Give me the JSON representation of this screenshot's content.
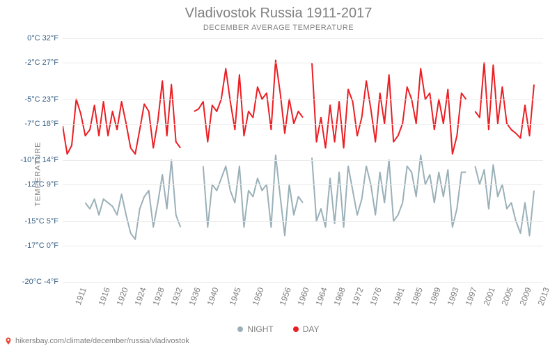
{
  "title": "Vladivostok Russia 1911-2017",
  "subtitle": "DECEMBER AVERAGE TEMPERATURE",
  "yaxis_label": "TEMPERATURE",
  "attribution": "hikersbay.com/climate/december/russia/vladivostok",
  "legend": {
    "night": {
      "label": "NIGHT",
      "color": "#9ab0b8"
    },
    "day": {
      "label": "DAY",
      "color": "#eb1e23"
    }
  },
  "chart": {
    "type": "line",
    "background_color": "#ffffff",
    "grid_color": "#eaeaea",
    "title_fontsize": 20,
    "title_color": "#808080",
    "subtitle_fontsize": 11,
    "axis_label_color": "#808080",
    "tick_color_y": "#335e84",
    "tick_color_x": "#808080",
    "tick_fontsize_x": 12,
    "tick_fontsize_y": 11,
    "line_width": 2,
    "marker_style": "circle",
    "marker_size": 3,
    "xtick_rotation": -70,
    "xlim": [
      1911,
      2017
    ],
    "ylim_c": [
      -20,
      0
    ],
    "xticks": [
      1911,
      1916,
      1920,
      1924,
      1928,
      1932,
      1936,
      1940,
      1945,
      1950,
      1956,
      1960,
      1964,
      1968,
      1972,
      1976,
      1981,
      1985,
      1989,
      1993,
      1997,
      2001,
      2005,
      2009,
      2013
    ],
    "yticks": [
      {
        "c": 0,
        "f": 32,
        "label_c": "0°C",
        "label_f": "32°F"
      },
      {
        "c": -2,
        "f": 27,
        "label_c": "-2°C",
        "label_f": "27°F"
      },
      {
        "c": -5,
        "f": 23,
        "label_c": "-5°C",
        "label_f": "23°F"
      },
      {
        "c": -7,
        "f": 18,
        "label_c": "-7°C",
        "label_f": "18°F"
      },
      {
        "c": -10,
        "f": 14,
        "label_c": "-10°C",
        "label_f": "14°F"
      },
      {
        "c": -12,
        "f": 9,
        "label_c": "-12°C",
        "label_f": "9°F"
      },
      {
        "c": -15,
        "f": 5,
        "label_c": "-15°C",
        "label_f": "5°F"
      },
      {
        "c": -17,
        "f": 0,
        "label_c": "-17°C",
        "label_f": "0°F"
      },
      {
        "c": -20,
        "f": -4,
        "label_c": "-20°C",
        "label_f": "-4°F"
      }
    ],
    "series": {
      "day": {
        "color": "#eb1e23",
        "segments": [
          {
            "years": [
              1911,
              1912,
              1913,
              1914,
              1915,
              1916,
              1917,
              1918,
              1919,
              1920,
              1921,
              1922,
              1923,
              1924,
              1925,
              1926,
              1927,
              1928,
              1929,
              1930,
              1931,
              1932,
              1933,
              1934,
              1935,
              1936,
              1937
            ],
            "values_c": [
              -7.2,
              -9.5,
              -8.8,
              -5.0,
              -6.2,
              -8.0,
              -7.5,
              -5.5,
              -8.0,
              -5.2,
              -8.0,
              -6.0,
              -7.5,
              -5.2,
              -7.0,
              -9.0,
              -9.5,
              -7.5,
              -5.4,
              -6.0,
              -9.0,
              -6.8,
              -3.5,
              -8.0,
              -3.8,
              -8.5,
              -9.0
            ]
          },
          {
            "years": [
              1940,
              1941,
              1942,
              1943,
              1944,
              1945,
              1946,
              1947,
              1948,
              1949,
              1950,
              1951,
              1952,
              1953,
              1954,
              1955,
              1956,
              1957,
              1958,
              1959,
              1960,
              1961,
              1962,
              1963,
              1964
            ],
            "values_c": [
              -6.0,
              -5.8,
              -5.2,
              -8.5,
              -5.5,
              -6.0,
              -5.0,
              -2.5,
              -5.2,
              -7.5,
              -3.0,
              -8.0,
              -6.0,
              -6.5,
              -4.0,
              -5.0,
              -4.5,
              -7.5,
              -1.8,
              -4.5,
              -7.8,
              -5.0,
              -7.0,
              -6.0,
              -6.5
            ]
          },
          {
            "years": [
              1966,
              1967,
              1968,
              1969,
              1970,
              1971,
              1972,
              1973,
              1974,
              1975,
              1976,
              1977,
              1978,
              1979,
              1980,
              1981,
              1982,
              1983,
              1984,
              1985,
              1986,
              1987,
              1988,
              1989,
              1990,
              1991,
              1992,
              1993,
              1994,
              1995,
              1996,
              1997,
              1998,
              1999,
              2000
            ],
            "values_c": [
              -2.0,
              -8.5,
              -6.5,
              -9.0,
              -5.5,
              -8.5,
              -5.2,
              -9.0,
              -4.2,
              -5.2,
              -8.0,
              -6.5,
              -3.5,
              -5.8,
              -8.5,
              -4.5,
              -7.0,
              -3.0,
              -8.5,
              -8.0,
              -7.0,
              -4.0,
              -5.0,
              -7.0,
              -2.5,
              -5.0,
              -4.5,
              -7.5,
              -5.0,
              -7.0,
              -4.2,
              -9.5,
              -8.0,
              -4.5,
              -5.0
            ]
          },
          {
            "years": [
              2002,
              2003,
              2004,
              2005,
              2006,
              2007,
              2008,
              2009,
              2010,
              2011,
              2012,
              2013,
              2014,
              2015
            ],
            "values_c": [
              -6.0,
              -6.5,
              -2.0,
              -7.5,
              -2.2,
              -7.0,
              -4.0,
              -7.0,
              -7.5,
              -7.8,
              -8.2,
              -5.5,
              -8.0,
              -3.8
            ]
          }
        ]
      },
      "night": {
        "color": "#9ab0b8",
        "segments": [
          {
            "years": [
              1916,
              1917,
              1918,
              1919,
              1920,
              1921,
              1922,
              1923,
              1924,
              1925,
              1926,
              1927,
              1928,
              1929,
              1930,
              1931,
              1932,
              1933,
              1934,
              1935,
              1936,
              1937
            ],
            "values_c": [
              -13.5,
              -14.0,
              -13.2,
              -14.5,
              -13.2,
              -13.5,
              -13.8,
              -14.5,
              -12.8,
              -14.5,
              -16.0,
              -16.5,
              -14.0,
              -13.0,
              -12.5,
              -15.5,
              -13.5,
              -11.2,
              -14.0,
              -10.0,
              -14.5,
              -15.5
            ]
          },
          {
            "years": [
              1942,
              1943,
              1944,
              1945,
              1946,
              1947,
              1948,
              1949,
              1950,
              1951,
              1952,
              1953,
              1954,
              1955,
              1956,
              1957,
              1958,
              1959,
              1960,
              1961,
              1962,
              1963,
              1964
            ],
            "values_c": [
              -10.5,
              -15.5,
              -12.0,
              -12.5,
              -11.5,
              -10.5,
              -12.5,
              -13.5,
              -10.5,
              -15.5,
              -12.5,
              -13.0,
              -11.5,
              -12.5,
              -12.0,
              -15.5,
              -9.6,
              -13.0,
              -16.2,
              -12.0,
              -14.5,
              -13.0,
              -13.5
            ]
          },
          {
            "years": [
              1966,
              1967,
              1968,
              1969,
              1970,
              1971,
              1972,
              1973,
              1974,
              1975,
              1976,
              1977,
              1978,
              1979,
              1980,
              1981,
              1982,
              1983,
              1984,
              1985,
              1986,
              1987,
              1988,
              1989,
              1990,
              1991,
              1992,
              1993,
              1994,
              1995,
              1996,
              1997,
              1998,
              1999,
              2000
            ],
            "values_c": [
              -9.8,
              -15.0,
              -14.0,
              -15.5,
              -11.5,
              -15.2,
              -11.0,
              -15.5,
              -10.5,
              -12.5,
              -14.5,
              -13.2,
              -10.5,
              -12.0,
              -14.5,
              -11.0,
              -13.5,
              -10.0,
              -15.0,
              -14.5,
              -13.5,
              -10.5,
              -11.0,
              -13.0,
              -9.6,
              -12.0,
              -11.2,
              -13.5,
              -11.0,
              -13.0,
              -10.8,
              -15.5,
              -14.0,
              -11.0,
              -11.0
            ]
          },
          {
            "years": [
              2002,
              2003,
              2004,
              2005,
              2006,
              2007,
              2008,
              2009,
              2010,
              2011,
              2012,
              2013,
              2014,
              2015
            ],
            "values_c": [
              -10.5,
              -12.0,
              -10.8,
              -14.0,
              -10.4,
              -13.0,
              -12.0,
              -14.0,
              -13.5,
              -15.0,
              -16.0,
              -13.5,
              -16.2,
              -12.5
            ]
          }
        ]
      }
    }
  }
}
